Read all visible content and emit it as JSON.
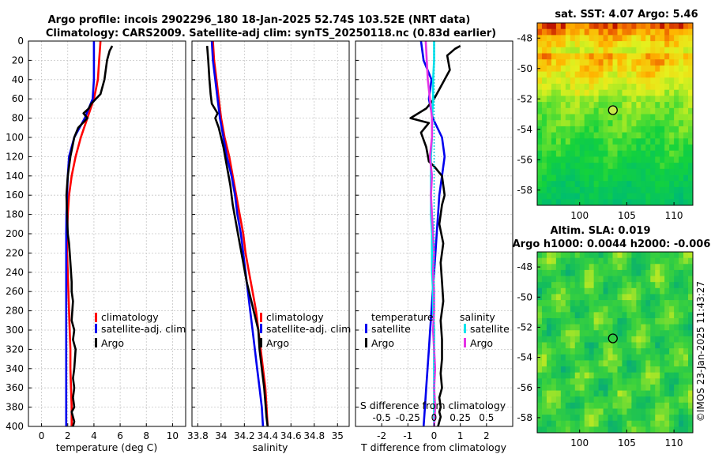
{
  "titles": {
    "line1": "Argo profile: incois 2902296_180 18-Jan-2025 52.74S 103.52E (NRT data)",
    "line2": "Climatology: CARS2009. Satellite-adj clim: synTS_20250118.nc (0.83d earlier)"
  },
  "colors": {
    "climatology": "#ff0000",
    "satellite": "#0000ee",
    "argo": "#000000",
    "satellite_s": "#00e5ee",
    "argo_s": "#e633e6"
  },
  "chart_data": [
    {
      "type": "line",
      "id": "temperature",
      "xlabel": "temperature (deg C)",
      "ylabel": "",
      "xlim": [
        -1,
        11
      ],
      "ylim": [
        400,
        0
      ],
      "xticks": [
        "0",
        "2",
        "4",
        "6",
        "8",
        "10"
      ],
      "yticks": [
        "0",
        "20",
        "40",
        "60",
        "80",
        "100",
        "120",
        "140",
        "160",
        "180",
        "200",
        "220",
        "240",
        "260",
        "280",
        "300",
        "320",
        "340",
        "360",
        "380",
        "400"
      ],
      "legend": [
        "climatology",
        "satellite-adj. clim",
        "Argo"
      ],
      "series": [
        {
          "name": "climatology",
          "color": "#ff0000",
          "x": [
            4.5,
            4.4,
            4.3,
            4.0,
            3.5,
            3.0,
            2.6,
            2.3,
            2.1,
            2.0,
            1.95,
            1.95,
            2.0,
            2.05,
            2.1,
            2.15,
            2.2,
            2.2,
            2.25,
            2.3,
            2.3
          ],
          "y": [
            0,
            20,
            40,
            60,
            80,
            100,
            120,
            140,
            160,
            180,
            200,
            220,
            240,
            260,
            280,
            300,
            320,
            340,
            360,
            380,
            400
          ]
        },
        {
          "name": "satellite-adj. clim",
          "color": "#0000ee",
          "x": [
            4.0,
            4.0,
            4.0,
            3.9,
            3.3,
            2.5,
            2.1,
            2.0,
            1.95,
            1.9,
            1.88,
            1.88,
            1.88,
            1.88,
            1.88,
            1.88,
            1.88,
            1.88,
            1.88,
            1.88
          ],
          "y": [
            0,
            20,
            40,
            60,
            80,
            100,
            120,
            140,
            160,
            180,
            200,
            220,
            240,
            260,
            280,
            300,
            320,
            340,
            360,
            400
          ]
        },
        {
          "name": "Argo",
          "color": "#000000",
          "x": [
            5.4,
            5.2,
            5.0,
            4.8,
            4.5,
            3.8,
            3.6,
            3.2,
            3.5,
            2.8,
            2.5,
            2.2,
            2.0,
            1.9,
            1.95,
            2.0,
            2.1,
            2.2,
            2.3,
            2.3,
            2.4,
            2.3,
            2.5,
            2.4,
            2.6,
            2.5,
            2.4,
            2.5,
            2.4,
            2.5,
            2.3,
            2.5,
            2.4
          ],
          "y": [
            5,
            10,
            20,
            40,
            55,
            65,
            70,
            75,
            80,
            90,
            100,
            120,
            140,
            160,
            180,
            200,
            210,
            230,
            250,
            260,
            270,
            290,
            300,
            310,
            320,
            340,
            350,
            360,
            370,
            380,
            385,
            395,
            400
          ]
        }
      ]
    },
    {
      "type": "line",
      "id": "salinity",
      "xlabel": "salinity",
      "xlim": [
        33.75,
        35.1
      ],
      "ylim": [
        400,
        0
      ],
      "xticks": [
        "33.8",
        "34",
        "34.2",
        "34.4",
        "34.6",
        "34.8",
        "35"
      ],
      "legend": [
        "climatology",
        "satellite-adj. clim",
        "Argo"
      ],
      "series": [
        {
          "name": "climatology",
          "color": "#ff0000",
          "x": [
            33.93,
            33.94,
            33.96,
            33.98,
            34.0,
            34.03,
            34.07,
            34.1,
            34.13,
            34.16,
            34.19,
            34.21,
            34.24,
            34.27,
            34.3,
            34.32,
            34.34,
            34.36,
            34.38,
            34.4
          ],
          "y": [
            0,
            20,
            40,
            60,
            80,
            100,
            120,
            140,
            160,
            180,
            200,
            220,
            240,
            260,
            280,
            300,
            320,
            340,
            360,
            400
          ]
        },
        {
          "name": "satellite-adj. clim",
          "color": "#0000ee",
          "x": [
            33.92,
            33.93,
            33.95,
            33.97,
            33.99,
            34.02,
            34.05,
            34.09,
            34.12,
            34.14,
            34.17,
            34.19,
            34.21,
            34.23,
            34.25,
            34.27,
            34.29,
            34.31,
            34.33,
            34.35,
            34.36
          ],
          "y": [
            0,
            20,
            40,
            60,
            80,
            100,
            120,
            140,
            160,
            180,
            200,
            220,
            240,
            260,
            280,
            300,
            320,
            340,
            360,
            380,
            400
          ]
        },
        {
          "name": "Argo",
          "color": "#000000",
          "x": [
            33.88,
            33.89,
            33.9,
            33.91,
            33.92,
            33.97,
            33.95,
            33.98,
            34.02,
            34.05,
            34.08,
            34.1,
            34.13,
            34.16,
            34.19,
            34.22,
            34.26,
            34.28,
            34.3,
            34.32,
            34.33,
            34.35,
            34.37,
            34.38,
            34.39,
            34.4
          ],
          "y": [
            5,
            20,
            40,
            55,
            65,
            75,
            80,
            90,
            110,
            130,
            150,
            170,
            190,
            210,
            230,
            250,
            270,
            280,
            290,
            300,
            320,
            340,
            360,
            375,
            390,
            400
          ]
        }
      ]
    },
    {
      "type": "line",
      "id": "difference",
      "xlabel": "T difference from climatology",
      "x2label": "S difference from climatology",
      "xlim": [
        -3,
        3
      ],
      "ylim": [
        400,
        0
      ],
      "xticks": [
        "-2",
        "-1",
        "0",
        "1",
        "2"
      ],
      "x2ticks": [
        "-0.5",
        "-0.25",
        "0",
        "0.25",
        "0.5"
      ],
      "legend_groups": [
        {
          "title": "temperature",
          "entries": [
            "satellite",
            "Argo"
          ]
        },
        {
          "title": "salinity",
          "entries": [
            "satellite",
            "Argo"
          ]
        }
      ],
      "series": [
        {
          "name": "temperature satellite",
          "color": "#0000ee",
          "x": [
            -0.5,
            -0.4,
            -0.1,
            -0.2,
            -0.05,
            0.3,
            0.4,
            0.3,
            0.2,
            0.15,
            0.1,
            0.05,
            0.0,
            -0.05,
            -0.1,
            -0.15,
            -0.2,
            -0.25,
            -0.3,
            -0.35,
            -0.4
          ],
          "y": [
            0,
            20,
            40,
            60,
            80,
            100,
            120,
            140,
            160,
            180,
            200,
            220,
            240,
            260,
            280,
            300,
            320,
            340,
            360,
            380,
            400
          ]
        },
        {
          "name": "temperature Argo",
          "color": "#000000",
          "x": [
            1.0,
            0.8,
            0.5,
            0.6,
            0.3,
            0.0,
            -0.3,
            -0.9,
            -0.2,
            -0.5,
            -0.3,
            -0.2,
            0.0,
            0.3,
            0.4,
            0.3,
            0.2,
            0.35,
            0.25,
            0.3,
            0.35,
            0.25,
            0.3,
            0.3,
            0.25,
            0.3,
            0.2,
            0.25,
            0.2,
            0.25,
            0.2,
            0.15
          ],
          "y": [
            5,
            8,
            15,
            30,
            45,
            60,
            70,
            80,
            85,
            95,
            110,
            125,
            130,
            140,
            160,
            170,
            190,
            210,
            230,
            250,
            270,
            290,
            310,
            330,
            345,
            360,
            370,
            380,
            385,
            390,
            395,
            400
          ]
        },
        {
          "name": "salinity satellite",
          "color": "#00e5ee",
          "x": [
            0.0,
            0.0,
            -0.01,
            -0.01,
            -0.02,
            -0.02,
            -0.03,
            -0.03,
            -0.03,
            -0.03,
            -0.02,
            -0.02,
            -0.02,
            -0.01,
            -0.01,
            0.0,
            0.0,
            0.0,
            0.0,
            0.0,
            0.0
          ],
          "y": [
            0,
            20,
            40,
            60,
            80,
            100,
            120,
            140,
            160,
            180,
            200,
            220,
            240,
            260,
            280,
            300,
            320,
            340,
            360,
            380,
            400
          ]
        },
        {
          "name": "salinity Argo",
          "color": "#e633e6",
          "x": [
            -0.08,
            -0.07,
            -0.06,
            -0.04,
            -0.02,
            -0.02,
            -0.04,
            -0.02,
            -0.03,
            -0.02,
            -0.01,
            0.0,
            -0.01,
            0.0,
            0.0,
            -0.01,
            0.0,
            0.01,
            0.0,
            0.01,
            0.0
          ],
          "y": [
            0,
            20,
            40,
            60,
            80,
            100,
            120,
            140,
            160,
            180,
            200,
            220,
            240,
            260,
            280,
            300,
            320,
            340,
            360,
            380,
            400
          ]
        }
      ]
    },
    {
      "type": "heatmap",
      "id": "sst-map",
      "title": "sat. SST: 4.07 Argo: 5.46",
      "xlim": [
        95.5,
        112
      ],
      "ylim": [
        -59,
        -47
      ],
      "xticks": [
        "100",
        "105",
        "110"
      ],
      "yticks": [
        "-48",
        "-50",
        "-52",
        "-54",
        "-56",
        "-58"
      ],
      "marker": {
        "lon": 103.52,
        "lat": -52.74
      }
    },
    {
      "type": "heatmap",
      "id": "sla-map",
      "title": "Altim. SLA: 0.019",
      "subtitle": "Argo h1000: 0.0044 h2000: -0.006",
      "xlim": [
        95.5,
        112
      ],
      "ylim": [
        -59,
        -47
      ],
      "xticks": [
        "100",
        "105",
        "110"
      ],
      "yticks": [
        "-48",
        "-50",
        "-52",
        "-54",
        "-56",
        "-58"
      ],
      "marker": {
        "lon": 103.52,
        "lat": -52.74
      }
    }
  ],
  "copyright": "©IMOS 23-Jan-2025 11:43:27"
}
